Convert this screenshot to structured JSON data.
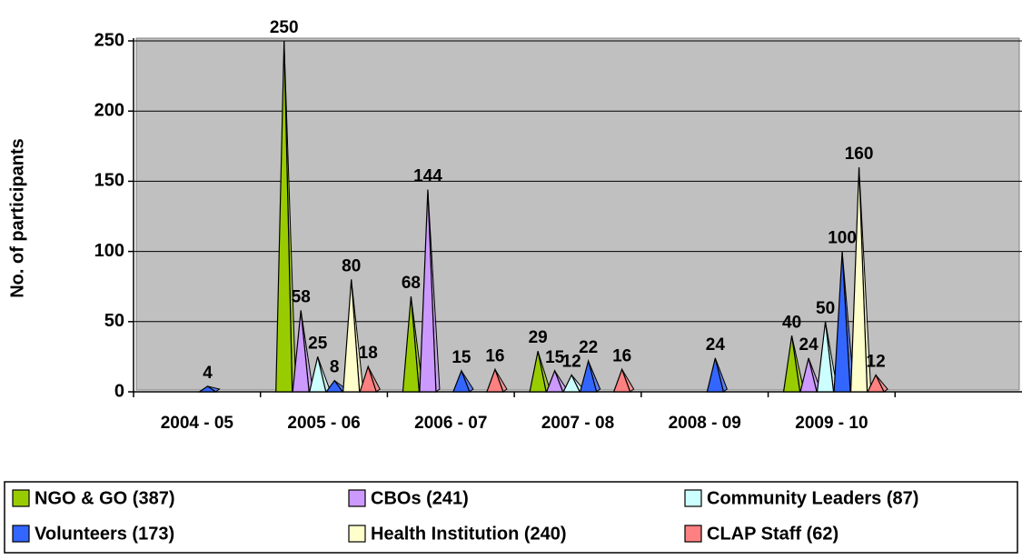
{
  "chart_data": {
    "type": "pyramid",
    "y_label": "No. of participants",
    "categories": [
      "2004 - 05",
      "2005 - 06",
      "2006 - 07",
      "2007 - 08",
      "2008 - 09",
      "2009 - 10",
      null
    ],
    "series": [
      {
        "name": "NGO & GO (387)",
        "color": "#99cc00",
        "values": [
          null,
          250,
          68,
          29,
          null,
          40,
          null
        ]
      },
      {
        "name": "CBOs (241)",
        "color": "#cc99ff",
        "values": [
          null,
          58,
          144,
          15,
          null,
          24,
          null
        ]
      },
      {
        "name": "Community Leaders (87)",
        "color": "#ccffff",
        "values": [
          null,
          25,
          null,
          12,
          null,
          50,
          null
        ]
      },
      {
        "name": "Volunteers (173)",
        "color": "#3366ff",
        "values": [
          4,
          8,
          15,
          22,
          24,
          100,
          null
        ]
      },
      {
        "name": "Health Institution (240)",
        "color": "#ffffcc",
        "values": [
          null,
          80,
          null,
          null,
          null,
          160,
          null
        ]
      },
      {
        "name": "CLAP Staff (62)",
        "color": "#ff8080",
        "values": [
          null,
          18,
          16,
          16,
          null,
          12,
          null
        ]
      }
    ],
    "ylim": [
      0,
      250
    ],
    "yticks": [
      0,
      50,
      100,
      150,
      200,
      250
    ],
    "grid": true
  }
}
